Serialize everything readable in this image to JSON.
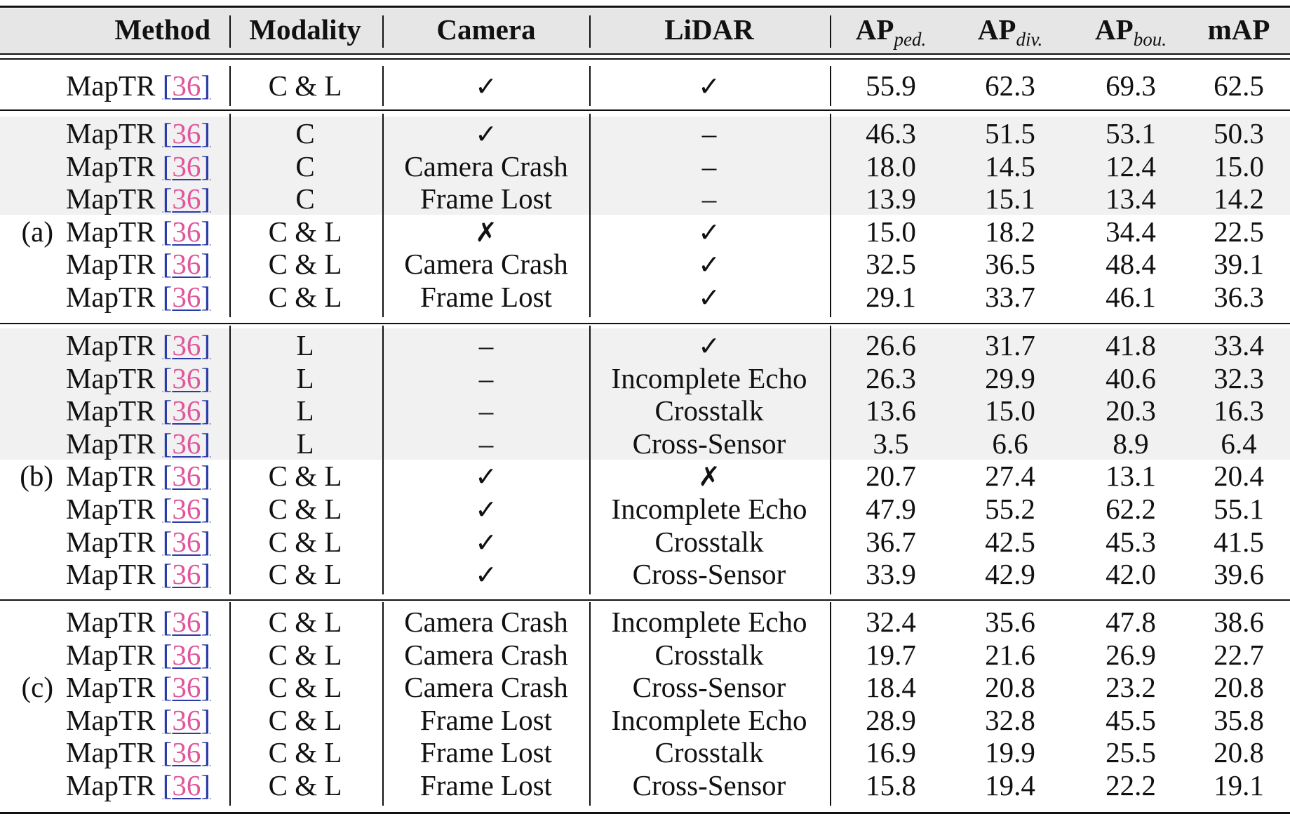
{
  "table": {
    "headers": {
      "method": "Method",
      "modality": "Modality",
      "camera": "Camera",
      "lidar": "LiDAR",
      "ap_ped_base": "AP",
      "ap_ped_sub": "ped.",
      "ap_div_base": "AP",
      "ap_div_sub": "div.",
      "ap_bou_base": "AP",
      "ap_bou_sub": "bou.",
      "map": "mAP"
    },
    "groups": [
      {
        "label": "",
        "rows": [
          {
            "method": "MapTR",
            "ref": "36",
            "modality": "C & L",
            "camera": "✓",
            "lidar": "✓",
            "ap_ped": "55.9",
            "ap_div": "62.3",
            "ap_bou": "69.3",
            "map": "62.5",
            "shaded": false
          }
        ]
      },
      {
        "label": "(a)",
        "label_row": 3,
        "rows": [
          {
            "method": "MapTR",
            "ref": "36",
            "modality": "C",
            "camera": "✓",
            "lidar": "–",
            "ap_ped": "46.3",
            "ap_div": "51.5",
            "ap_bou": "53.1",
            "map": "50.3",
            "shaded": true
          },
          {
            "method": "MapTR",
            "ref": "36",
            "modality": "C",
            "camera": "Camera Crash",
            "lidar": "–",
            "ap_ped": "18.0",
            "ap_div": "14.5",
            "ap_bou": "12.4",
            "map": "15.0",
            "shaded": true
          },
          {
            "method": "MapTR",
            "ref": "36",
            "modality": "C",
            "camera": "Frame Lost",
            "lidar": "–",
            "ap_ped": "13.9",
            "ap_div": "15.1",
            "ap_bou": "13.4",
            "map": "14.2",
            "shaded": true
          },
          {
            "method": "MapTR",
            "ref": "36",
            "modality": "C & L",
            "camera": "✗",
            "lidar": "✓",
            "ap_ped": "15.0",
            "ap_div": "18.2",
            "ap_bou": "34.4",
            "map": "22.5",
            "shaded": false
          },
          {
            "method": "MapTR",
            "ref": "36",
            "modality": "C & L",
            "camera": "Camera Crash",
            "lidar": "✓",
            "ap_ped": "32.5",
            "ap_div": "36.5",
            "ap_bou": "48.4",
            "map": "39.1",
            "shaded": false
          },
          {
            "method": "MapTR",
            "ref": "36",
            "modality": "C & L",
            "camera": "Frame Lost",
            "lidar": "✓",
            "ap_ped": "29.1",
            "ap_div": "33.7",
            "ap_bou": "46.1",
            "map": "36.3",
            "shaded": false
          }
        ]
      },
      {
        "label": "(b)",
        "label_row": 4,
        "rows": [
          {
            "method": "MapTR",
            "ref": "36",
            "modality": "L",
            "camera": "–",
            "lidar": "✓",
            "ap_ped": "26.6",
            "ap_div": "31.7",
            "ap_bou": "41.8",
            "map": "33.4",
            "shaded": true
          },
          {
            "method": "MapTR",
            "ref": "36",
            "modality": "L",
            "camera": "–",
            "lidar": "Incomplete Echo",
            "ap_ped": "26.3",
            "ap_div": "29.9",
            "ap_bou": "40.6",
            "map": "32.3",
            "shaded": true
          },
          {
            "method": "MapTR",
            "ref": "36",
            "modality": "L",
            "camera": "–",
            "lidar": "Crosstalk",
            "ap_ped": "13.6",
            "ap_div": "15.0",
            "ap_bou": "20.3",
            "map": "16.3",
            "shaded": true
          },
          {
            "method": "MapTR",
            "ref": "36",
            "modality": "L",
            "camera": "–",
            "lidar": "Cross-Sensor",
            "ap_ped": "3.5",
            "ap_div": "6.6",
            "ap_bou": "8.9",
            "map": "6.4",
            "shaded": true
          },
          {
            "method": "MapTR",
            "ref": "36",
            "modality": "C & L",
            "camera": "✓",
            "lidar": "✗",
            "ap_ped": "20.7",
            "ap_div": "27.4",
            "ap_bou": "13.1",
            "map": "20.4",
            "shaded": false
          },
          {
            "method": "MapTR",
            "ref": "36",
            "modality": "C & L",
            "camera": "✓",
            "lidar": "Incomplete Echo",
            "ap_ped": "47.9",
            "ap_div": "55.2",
            "ap_bou": "62.2",
            "map": "55.1",
            "shaded": false
          },
          {
            "method": "MapTR",
            "ref": "36",
            "modality": "C & L",
            "camera": "✓",
            "lidar": "Crosstalk",
            "ap_ped": "36.7",
            "ap_div": "42.5",
            "ap_bou": "45.3",
            "map": "41.5",
            "shaded": false
          },
          {
            "method": "MapTR",
            "ref": "36",
            "modality": "C & L",
            "camera": "✓",
            "lidar": "Cross-Sensor",
            "ap_ped": "33.9",
            "ap_div": "42.9",
            "ap_bou": "42.0",
            "map": "39.6",
            "shaded": false
          }
        ]
      },
      {
        "label": "(c)",
        "label_row": 2,
        "rows": [
          {
            "method": "MapTR",
            "ref": "36",
            "modality": "C & L",
            "camera": "Camera Crash",
            "lidar": "Incomplete Echo",
            "ap_ped": "32.4",
            "ap_div": "35.6",
            "ap_bou": "47.8",
            "map": "38.6",
            "shaded": false
          },
          {
            "method": "MapTR",
            "ref": "36",
            "modality": "C & L",
            "camera": "Camera Crash",
            "lidar": "Crosstalk",
            "ap_ped": "19.7",
            "ap_div": "21.6",
            "ap_bou": "26.9",
            "map": "22.7",
            "shaded": false
          },
          {
            "method": "MapTR",
            "ref": "36",
            "modality": "C & L",
            "camera": "Camera Crash",
            "lidar": "Cross-Sensor",
            "ap_ped": "18.4",
            "ap_div": "20.8",
            "ap_bou": "23.2",
            "map": "20.8",
            "shaded": false
          },
          {
            "method": "MapTR",
            "ref": "36",
            "modality": "C & L",
            "camera": "Frame Lost",
            "lidar": "Incomplete Echo",
            "ap_ped": "28.9",
            "ap_div": "32.8",
            "ap_bou": "45.5",
            "map": "35.8",
            "shaded": false
          },
          {
            "method": "MapTR",
            "ref": "36",
            "modality": "C & L",
            "camera": "Frame Lost",
            "lidar": "Crosstalk",
            "ap_ped": "16.9",
            "ap_div": "19.9",
            "ap_bou": "25.5",
            "map": "20.8",
            "shaded": false
          },
          {
            "method": "MapTR",
            "ref": "36",
            "modality": "C & L",
            "camera": "Frame Lost",
            "lidar": "Cross-Sensor",
            "ap_ped": "15.8",
            "ap_div": "19.4",
            "ap_bou": "22.2",
            "map": "19.1",
            "shaded": false
          }
        ]
      }
    ]
  }
}
